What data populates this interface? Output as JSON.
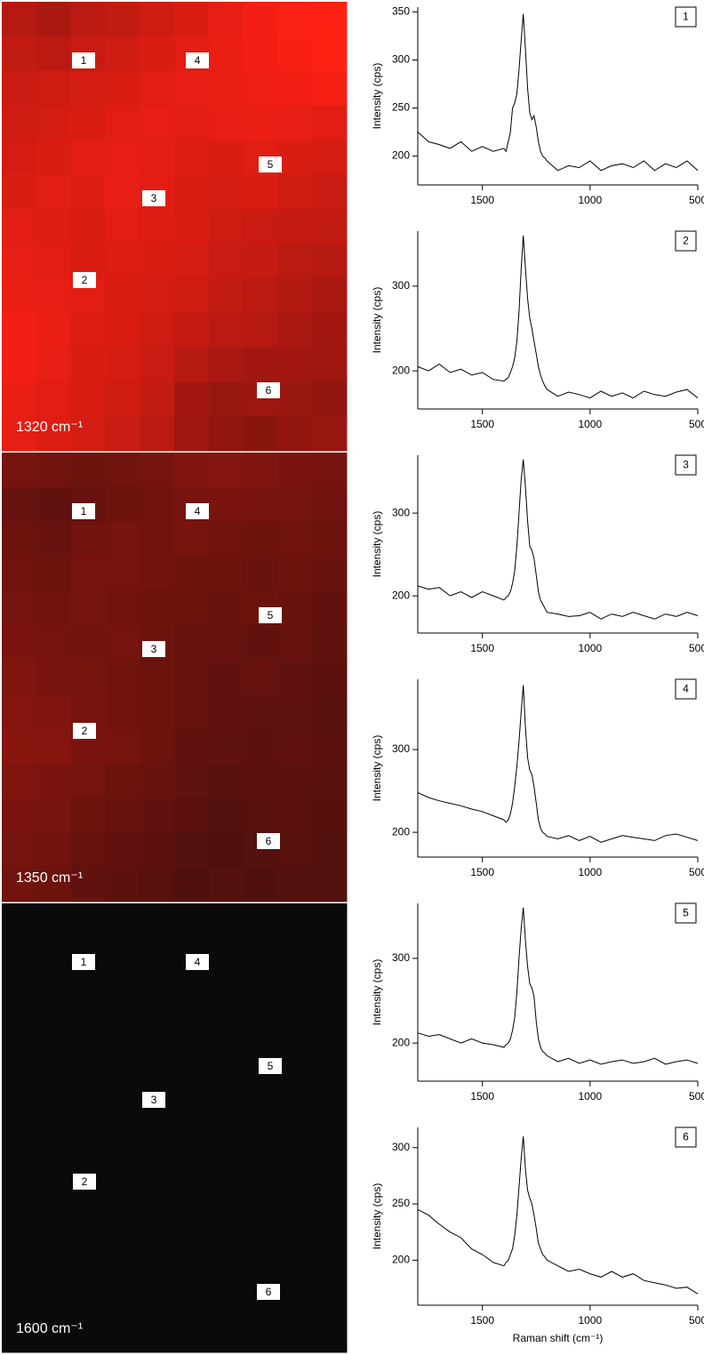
{
  "chart_data": [
    {
      "type": "heatmap",
      "title": "1320 cm⁻¹",
      "vlim": [
        0,
        100
      ],
      "colormap": [
        "#0a0a0a",
        "#ff2014"
      ],
      "z": [
        [
          70,
          65,
          72,
          75,
          80,
          85,
          90,
          95,
          98,
          100
        ],
        [
          75,
          72,
          78,
          80,
          85,
          88,
          92,
          95,
          97,
          100
        ],
        [
          78,
          80,
          82,
          85,
          88,
          90,
          92,
          93,
          95,
          96
        ],
        [
          80,
          82,
          85,
          88,
          90,
          88,
          90,
          92,
          90,
          88
        ],
        [
          82,
          85,
          88,
          90,
          88,
          86,
          85,
          88,
          85,
          82
        ],
        [
          85,
          88,
          86,
          90,
          88,
          85,
          82,
          85,
          80,
          78
        ],
        [
          88,
          86,
          85,
          88,
          86,
          84,
          80,
          78,
          76,
          75
        ],
        [
          90,
          88,
          85,
          86,
          84,
          82,
          78,
          76,
          72,
          70
        ],
        [
          92,
          90,
          88,
          84,
          82,
          80,
          75,
          72,
          68,
          65
        ],
        [
          95,
          92,
          86,
          84,
          80,
          76,
          72,
          70,
          65,
          62
        ],
        [
          95,
          90,
          85,
          82,
          78,
          70,
          65,
          62,
          62,
          60
        ],
        [
          92,
          88,
          84,
          80,
          75,
          62,
          58,
          60,
          58,
          55
        ],
        [
          90,
          86,
          82,
          78,
          72,
          60,
          55,
          52,
          55,
          58
        ]
      ],
      "markers": [
        "1",
        "2",
        "3",
        "4",
        "5",
        "6"
      ]
    },
    {
      "type": "heatmap",
      "title": "1350 cm⁻¹",
      "vlim": [
        0,
        100
      ],
      "colormap": [
        "#0a0a0a",
        "#ff2014"
      ],
      "z": [
        [
          45,
          42,
          40,
          42,
          45,
          48,
          50,
          48,
          46,
          45
        ],
        [
          38,
          35,
          38,
          40,
          42,
          45,
          46,
          45,
          44,
          42
        ],
        [
          40,
          38,
          42,
          44,
          42,
          44,
          42,
          40,
          42,
          40
        ],
        [
          42,
          40,
          45,
          44,
          42,
          40,
          40,
          38,
          40,
          38
        ],
        [
          44,
          42,
          44,
          42,
          40,
          40,
          38,
          40,
          38,
          36
        ],
        [
          46,
          44,
          42,
          44,
          40,
          38,
          38,
          36,
          38,
          35
        ],
        [
          48,
          45,
          44,
          42,
          40,
          38,
          36,
          38,
          36,
          34
        ],
        [
          50,
          48,
          45,
          42,
          40,
          38,
          36,
          35,
          35,
          32
        ],
        [
          52,
          50,
          46,
          44,
          40,
          36,
          35,
          34,
          36,
          33
        ],
        [
          48,
          46,
          44,
          40,
          38,
          35,
          32,
          34,
          33,
          32
        ],
        [
          46,
          44,
          40,
          38,
          36,
          33,
          30,
          32,
          33,
          31
        ],
        [
          44,
          42,
          38,
          36,
          34,
          30,
          28,
          30,
          32,
          30
        ],
        [
          42,
          40,
          36,
          34,
          32,
          28,
          30,
          28,
          30,
          30
        ]
      ],
      "markers": [
        "1",
        "2",
        "3",
        "4",
        "5",
        "6"
      ]
    },
    {
      "type": "heatmap",
      "title": "1600 cm⁻¹",
      "vlim": [
        0,
        100
      ],
      "colormap": [
        "#0a0a0a",
        "#ff2014"
      ],
      "z": [
        [
          0,
          0,
          0,
          0,
          0,
          0,
          0,
          0,
          0,
          0
        ],
        [
          0,
          0,
          0,
          0,
          0,
          0,
          0,
          0,
          0,
          0
        ],
        [
          0,
          0,
          0,
          0,
          0,
          0,
          0,
          0,
          0,
          0
        ],
        [
          0,
          0,
          0,
          0,
          0,
          0,
          0,
          0,
          0,
          0
        ],
        [
          0,
          0,
          0,
          0,
          0,
          0,
          0,
          0,
          0,
          0
        ],
        [
          0,
          0,
          0,
          0,
          0,
          0,
          0,
          0,
          0,
          0
        ],
        [
          0,
          0,
          0,
          0,
          0,
          0,
          0,
          0,
          0,
          0
        ],
        [
          0,
          0,
          0,
          0,
          0,
          0,
          0,
          0,
          0,
          0
        ],
        [
          0,
          0,
          0,
          0,
          0,
          0,
          0,
          0,
          0,
          0
        ],
        [
          0,
          0,
          0,
          0,
          0,
          0,
          0,
          0,
          0,
          0
        ],
        [
          0,
          0,
          0,
          0,
          0,
          0,
          0,
          0,
          0,
          0
        ],
        [
          0,
          0,
          0,
          0,
          0,
          0,
          0,
          0,
          0,
          0
        ],
        [
          0,
          0,
          0,
          0,
          0,
          0,
          0,
          0,
          0,
          0
        ]
      ],
      "markers": [
        "1",
        "2",
        "3",
        "4",
        "5",
        "6"
      ]
    },
    {
      "type": "line",
      "label": "1",
      "ylabel": "Intensity (cps)",
      "color": "#000000",
      "x": [
        1800,
        1750,
        1700,
        1650,
        1600,
        1550,
        1500,
        1450,
        1400,
        1390,
        1380,
        1370,
        1360,
        1350,
        1340,
        1330,
        1320,
        1310,
        1300,
        1290,
        1280,
        1270,
        1260,
        1250,
        1240,
        1230,
        1220,
        1210,
        1200,
        1150,
        1100,
        1050,
        1000,
        950,
        900,
        850,
        800,
        750,
        700,
        650,
        600,
        550,
        500
      ],
      "values": [
        225,
        215,
        212,
        208,
        215,
        205,
        210,
        205,
        208,
        205,
        215,
        225,
        250,
        255,
        265,
        290,
        320,
        348,
        310,
        270,
        245,
        238,
        242,
        230,
        215,
        205,
        200,
        198,
        195,
        185,
        190,
        188,
        195,
        185,
        190,
        192,
        188,
        195,
        185,
        192,
        188,
        195,
        185
      ],
      "xlim": [
        1800,
        500
      ],
      "xticks": [
        1500,
        1000,
        500
      ],
      "ylim": [
        170,
        355
      ],
      "yticks": [
        200,
        250,
        300,
        350
      ]
    },
    {
      "type": "line",
      "label": "2",
      "ylabel": "Intensity (cps)",
      "color": "#000000",
      "x": [
        1800,
        1750,
        1700,
        1650,
        1600,
        1550,
        1500,
        1450,
        1400,
        1390,
        1380,
        1370,
        1360,
        1350,
        1340,
        1330,
        1320,
        1310,
        1300,
        1290,
        1280,
        1270,
        1260,
        1250,
        1240,
        1230,
        1220,
        1210,
        1200,
        1150,
        1100,
        1050,
        1000,
        950,
        900,
        850,
        800,
        750,
        700,
        650,
        600,
        550,
        500
      ],
      "values": [
        205,
        200,
        208,
        198,
        202,
        195,
        198,
        190,
        188,
        190,
        192,
        198,
        205,
        215,
        235,
        270,
        320,
        360,
        320,
        285,
        262,
        250,
        235,
        220,
        205,
        195,
        188,
        182,
        178,
        170,
        175,
        172,
        168,
        176,
        170,
        174,
        168,
        176,
        172,
        170,
        175,
        178,
        168
      ],
      "xlim": [
        1800,
        500
      ],
      "xticks": [
        1500,
        1000,
        500
      ],
      "ylim": [
        155,
        365
      ],
      "yticks": [
        200,
        300
      ]
    },
    {
      "type": "line",
      "label": "3",
      "ylabel": "Intensity (cps)",
      "color": "#000000",
      "x": [
        1800,
        1750,
        1700,
        1650,
        1600,
        1550,
        1500,
        1450,
        1400,
        1390,
        1380,
        1370,
        1360,
        1350,
        1340,
        1330,
        1320,
        1310,
        1300,
        1290,
        1280,
        1270,
        1260,
        1250,
        1240,
        1230,
        1220,
        1210,
        1200,
        1150,
        1100,
        1050,
        1000,
        950,
        900,
        850,
        800,
        750,
        700,
        650,
        600,
        550,
        500
      ],
      "values": [
        212,
        208,
        210,
        200,
        205,
        198,
        205,
        200,
        195,
        198,
        200,
        205,
        215,
        230,
        260,
        300,
        340,
        365,
        330,
        290,
        260,
        255,
        245,
        225,
        205,
        195,
        190,
        185,
        180,
        178,
        175,
        176,
        180,
        172,
        178,
        175,
        180,
        176,
        172,
        178,
        175,
        180,
        176
      ],
      "xlim": [
        1800,
        500
      ],
      "xticks": [
        1500,
        1000,
        500
      ],
      "ylim": [
        155,
        370
      ],
      "yticks": [
        200,
        300
      ]
    },
    {
      "type": "line",
      "label": "4",
      "ylabel": "Intensity (cps)",
      "color": "#000000",
      "x": [
        1800,
        1750,
        1700,
        1650,
        1600,
        1550,
        1500,
        1450,
        1400,
        1390,
        1380,
        1370,
        1360,
        1350,
        1340,
        1330,
        1320,
        1310,
        1300,
        1290,
        1280,
        1270,
        1260,
        1250,
        1240,
        1230,
        1220,
        1210,
        1200,
        1150,
        1100,
        1050,
        1000,
        950,
        900,
        850,
        800,
        750,
        700,
        650,
        600,
        550,
        500
      ],
      "values": [
        248,
        242,
        238,
        235,
        232,
        228,
        225,
        220,
        215,
        212,
        215,
        222,
        235,
        255,
        280,
        310,
        345,
        378,
        325,
        290,
        275,
        270,
        255,
        235,
        215,
        205,
        200,
        198,
        195,
        192,
        196,
        190,
        195,
        188,
        192,
        196,
        194,
        192,
        190,
        196,
        198,
        194,
        190
      ],
      "xlim": [
        1800,
        500
      ],
      "xticks": [
        1500,
        1000,
        500
      ],
      "ylim": [
        170,
        385
      ],
      "yticks": [
        200,
        300
      ]
    },
    {
      "type": "line",
      "label": "5",
      "ylabel": "Intensity (cps)",
      "color": "#000000",
      "x": [
        1800,
        1750,
        1700,
        1650,
        1600,
        1550,
        1500,
        1450,
        1400,
        1390,
        1380,
        1370,
        1360,
        1350,
        1340,
        1330,
        1320,
        1310,
        1300,
        1290,
        1280,
        1270,
        1260,
        1250,
        1240,
        1230,
        1220,
        1210,
        1200,
        1150,
        1100,
        1050,
        1000,
        950,
        900,
        850,
        800,
        750,
        700,
        650,
        600,
        550,
        500
      ],
      "values": [
        212,
        208,
        210,
        205,
        200,
        205,
        200,
        198,
        195,
        198,
        200,
        205,
        215,
        230,
        260,
        300,
        335,
        360,
        320,
        290,
        270,
        265,
        255,
        225,
        205,
        195,
        190,
        188,
        185,
        178,
        182,
        176,
        180,
        175,
        178,
        180,
        176,
        178,
        182,
        175,
        178,
        180,
        176
      ],
      "xlim": [
        1800,
        500
      ],
      "xticks": [
        1500,
        1000,
        500
      ],
      "ylim": [
        155,
        365
      ],
      "yticks": [
        200,
        300
      ]
    },
    {
      "type": "line",
      "label": "6",
      "ylabel": "Intensity (cps)",
      "xlabel": "Raman shift (cm⁻¹)",
      "color": "#000000",
      "x": [
        1800,
        1750,
        1700,
        1650,
        1600,
        1550,
        1500,
        1450,
        1400,
        1390,
        1380,
        1370,
        1360,
        1350,
        1340,
        1330,
        1320,
        1310,
        1300,
        1290,
        1280,
        1270,
        1260,
        1250,
        1240,
        1230,
        1220,
        1210,
        1200,
        1150,
        1100,
        1050,
        1000,
        950,
        900,
        850,
        800,
        750,
        700,
        650,
        600,
        550,
        500
      ],
      "values": [
        245,
        240,
        232,
        225,
        220,
        210,
        205,
        198,
        195,
        198,
        200,
        205,
        210,
        222,
        240,
        265,
        290,
        310,
        280,
        262,
        255,
        250,
        240,
        228,
        215,
        210,
        205,
        203,
        200,
        195,
        190,
        192,
        188,
        185,
        190,
        185,
        188,
        182,
        180,
        178,
        175,
        176,
        170
      ],
      "xlim": [
        1800,
        500
      ],
      "xticks": [
        1500,
        1000,
        500
      ],
      "ylim": [
        160,
        318
      ],
      "yticks": [
        200,
        250,
        300
      ]
    }
  ]
}
